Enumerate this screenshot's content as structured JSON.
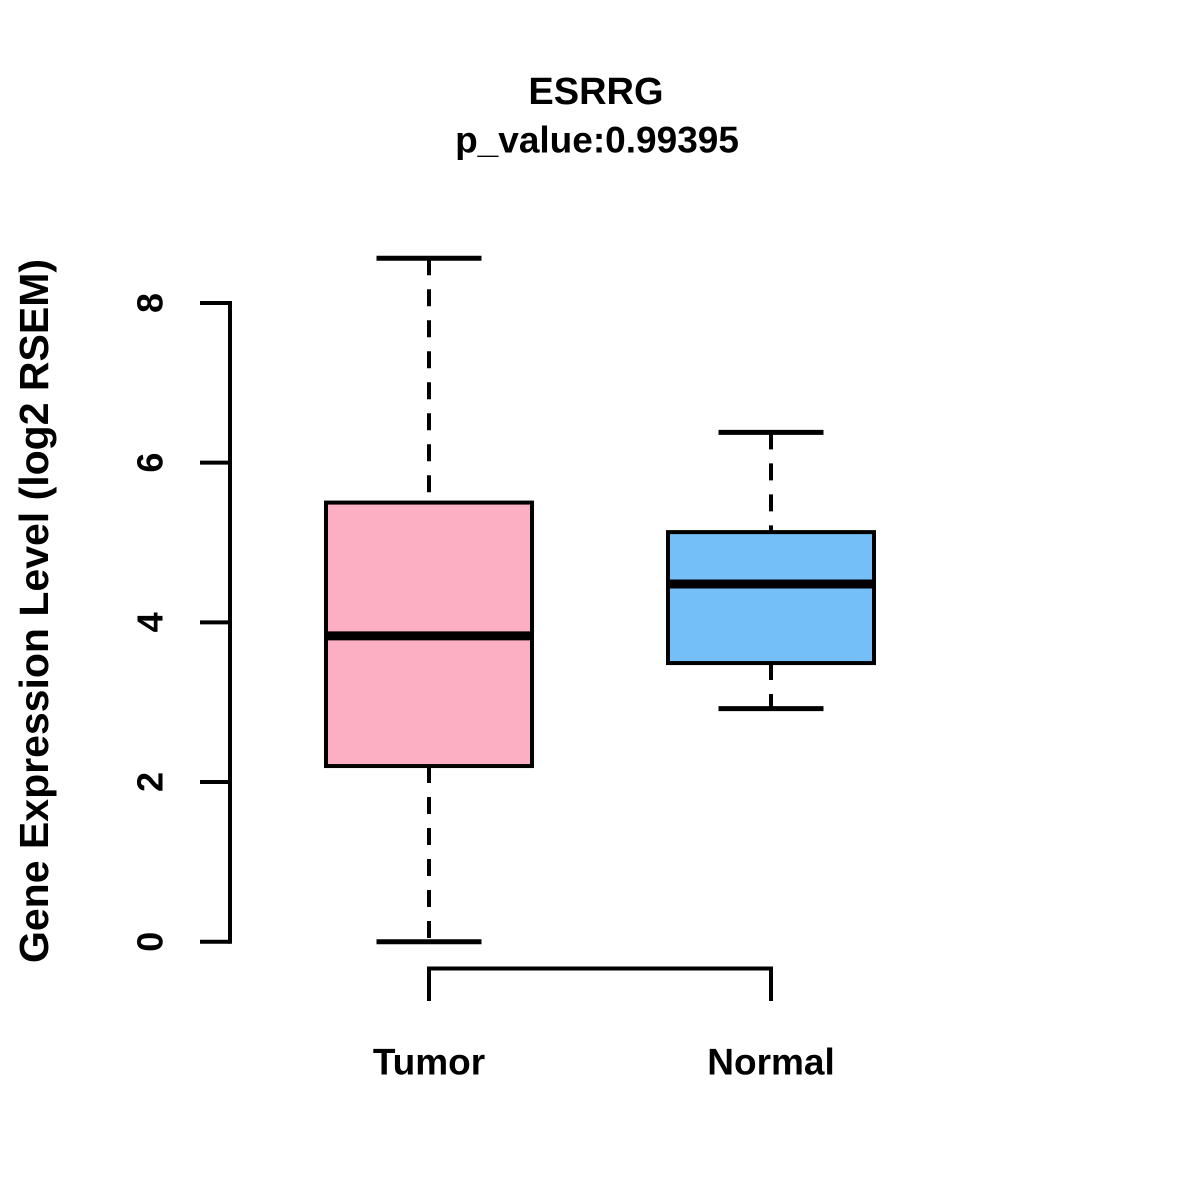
{
  "chart_data": {
    "type": "boxplot",
    "title": "ESRRG",
    "subtitle": "p_value:0.99395",
    "ylabel": "Gene Expression Level (log2 RSEM)",
    "xlabel": "",
    "categories": [
      "Tumor",
      "Normal"
    ],
    "series": [
      {
        "name": "Tumor",
        "fill_color": "#FCAFC2",
        "whisker_low": 0.0,
        "q1": 2.2,
        "median": 3.83,
        "q3": 5.5,
        "whisker_high": 8.56
      },
      {
        "name": "Normal",
        "fill_color": "#74BFF7",
        "whisker_low": 2.92,
        "q1": 3.49,
        "median": 4.48,
        "q3": 5.13,
        "whisker_high": 6.38
      }
    ],
    "yticks": [
      0,
      2,
      4,
      6,
      8
    ],
    "ylim": [
      0,
      8.6
    ],
    "grid": false,
    "legend": false,
    "stroke_color": "#000000",
    "background_color": "#FFFFFF"
  }
}
